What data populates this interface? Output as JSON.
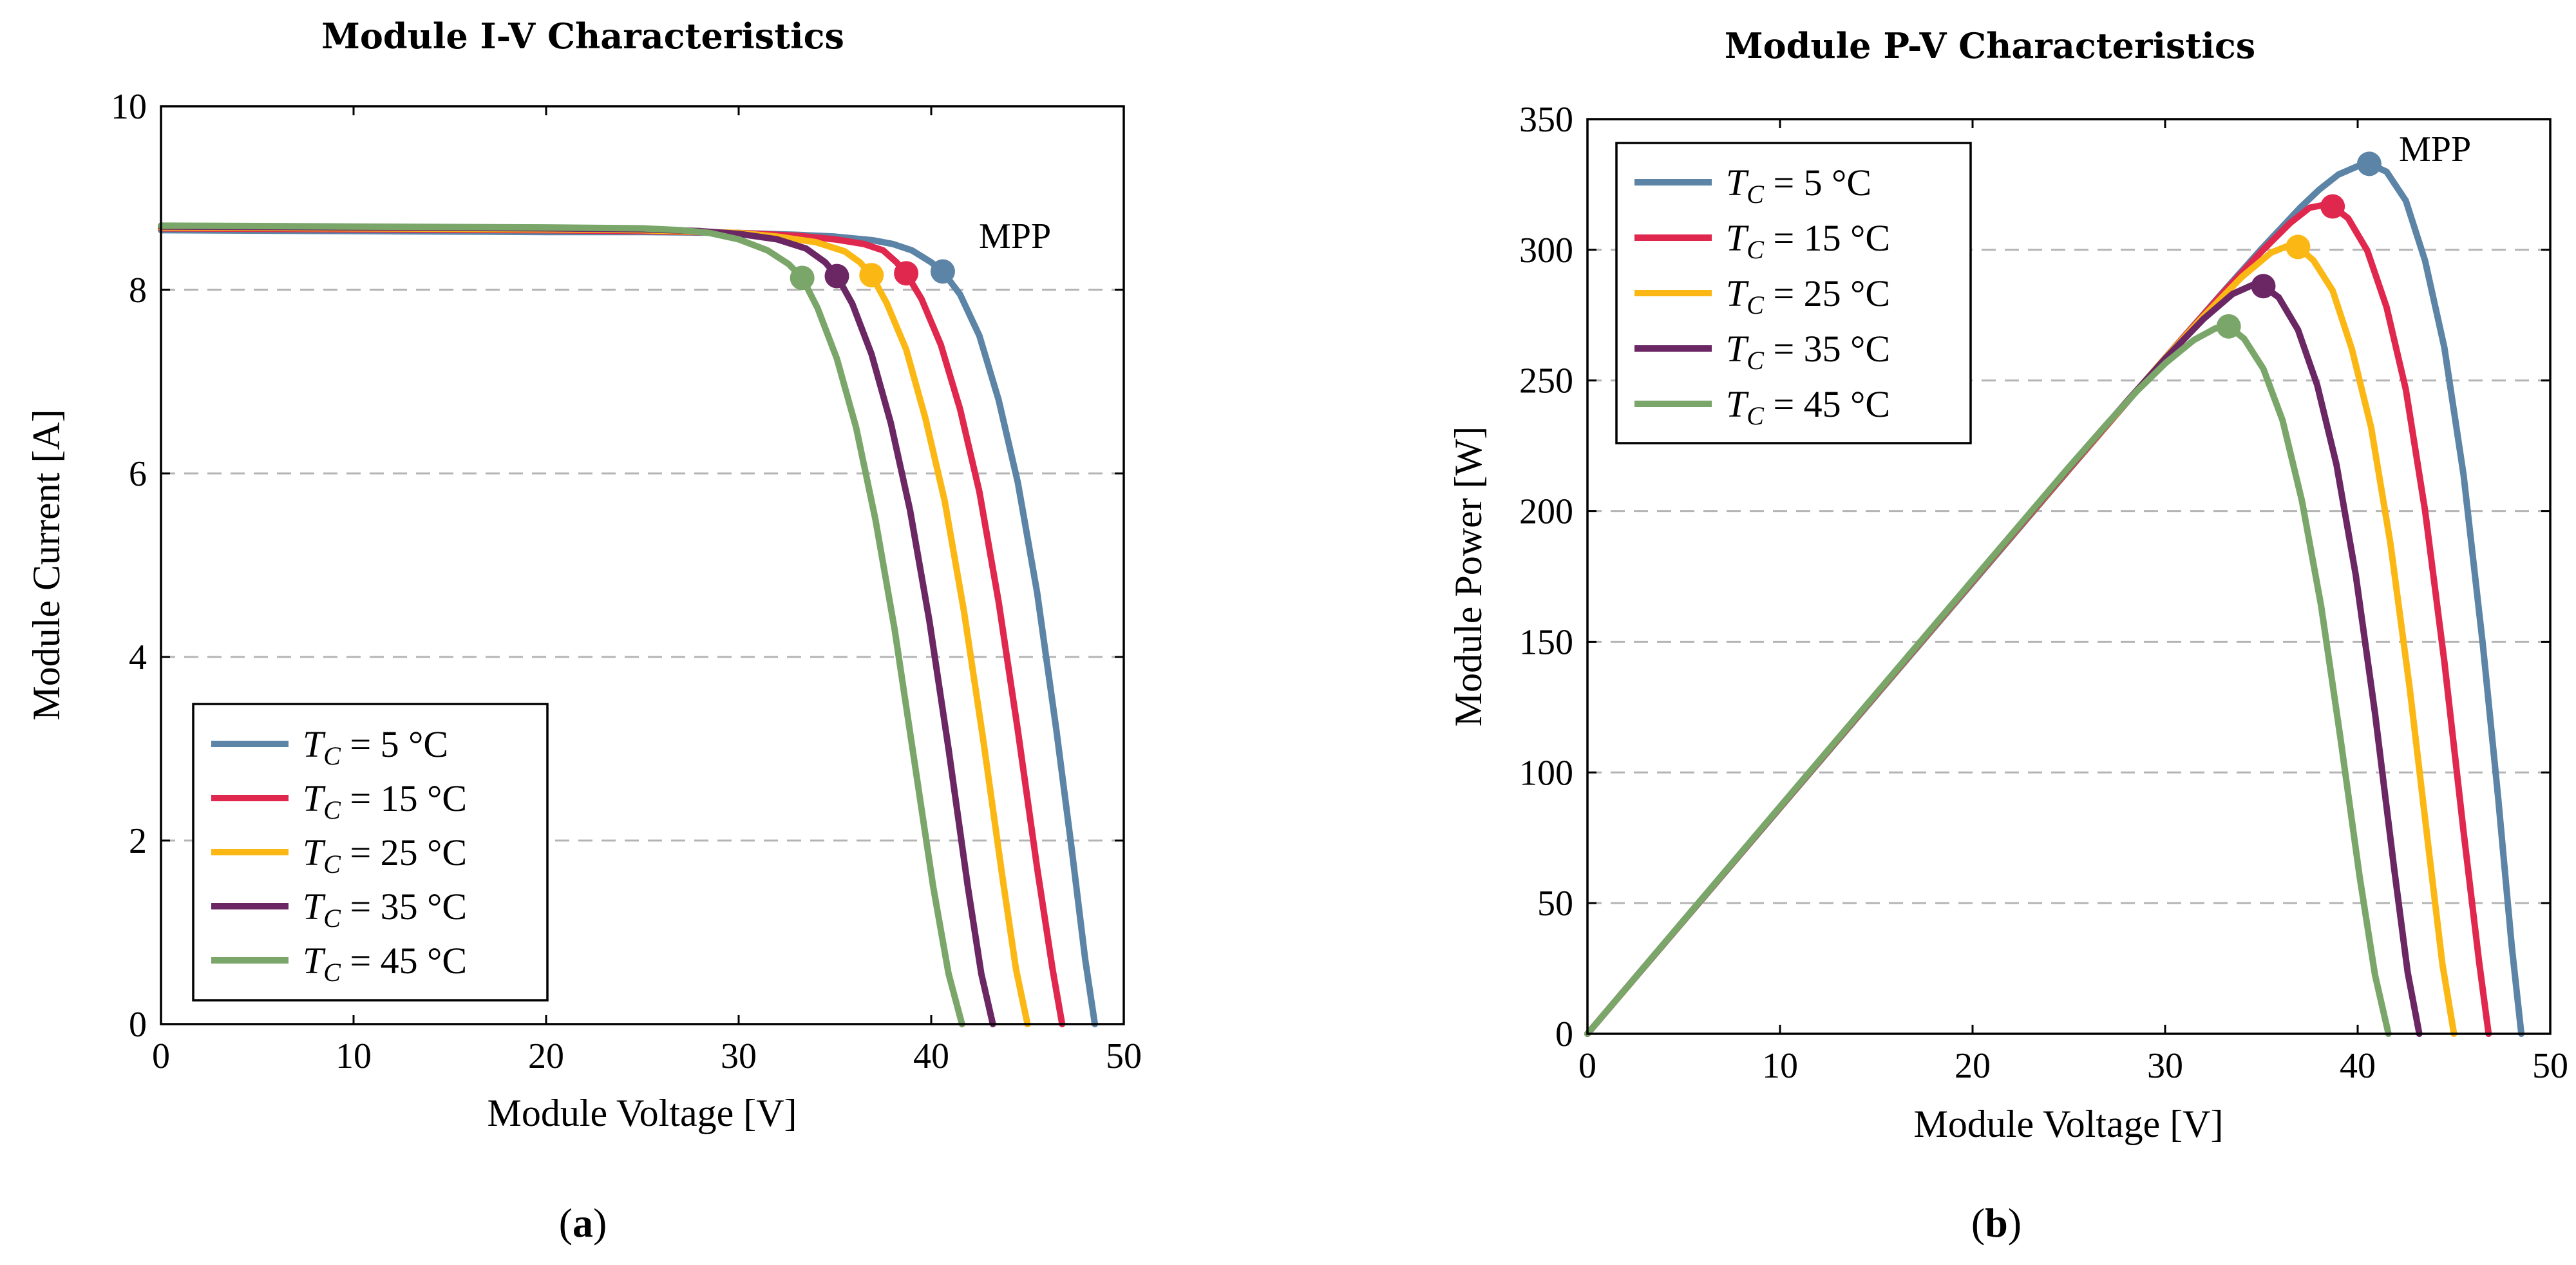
{
  "colors": {
    "tc5": "#5b84a6",
    "tc15": "#e0284e",
    "tc25": "#fbb815",
    "tc35": "#6b2764",
    "tc45": "#7aa66a",
    "grid": "#b4b4b4"
  },
  "chart_data": [
    {
      "type": "line",
      "title": "Module I-V Characteristics",
      "xlabel": "Module Voltage [V]",
      "ylabel": "Module Current [A]",
      "xlim": [
        0,
        50
      ],
      "ylim": [
        0,
        10
      ],
      "xticks": [
        0,
        10,
        20,
        30,
        40,
        50
      ],
      "yticks": [
        0,
        2,
        4,
        6,
        8,
        10
      ],
      "grid": "horizontal-dashed",
      "legend_position": "bottom-left",
      "annotation": "MPP",
      "panel_label": "a",
      "series": [
        {
          "key": "tc5",
          "name": "T_C = 5 °C",
          "legend_sub": "C",
          "legend_value": "5 °C",
          "x": [
            0,
            10,
            20,
            25,
            30,
            33,
            35,
            37,
            38,
            39,
            40,
            40.6,
            41.5,
            42.5,
            43.5,
            44.5,
            45.5,
            46.5,
            47.3,
            48,
            48.5
          ],
          "y": [
            8.65,
            8.64,
            8.63,
            8.63,
            8.62,
            8.6,
            8.58,
            8.54,
            8.5,
            8.43,
            8.3,
            8.2,
            7.95,
            7.5,
            6.8,
            5.9,
            4.7,
            3.2,
            1.9,
            0.7,
            0
          ]
        },
        {
          "key": "tc15",
          "name": "T_C = 15 °C",
          "legend_sub": "C",
          "legend_value": "15 °C",
          "x": [
            0,
            10,
            20,
            25,
            30,
            33,
            35,
            36.5,
            37.5,
            38.2,
            38.7,
            39.5,
            40.5,
            41.5,
            42.5,
            43.5,
            44.5,
            45.5,
            46.3,
            46.8
          ],
          "y": [
            8.67,
            8.66,
            8.65,
            8.64,
            8.62,
            8.59,
            8.55,
            8.5,
            8.43,
            8.3,
            8.18,
            7.9,
            7.4,
            6.7,
            5.8,
            4.6,
            3.2,
            1.7,
            0.6,
            0
          ]
        },
        {
          "key": "tc25",
          "name": "T_C = 25 °C",
          "legend_sub": "C",
          "legend_value": "25 °C",
          "x": [
            0,
            10,
            20,
            25,
            30,
            32,
            34,
            35.5,
            36.3,
            36.9,
            37.7,
            38.7,
            39.7,
            40.7,
            41.7,
            42.7,
            43.7,
            44.4,
            45
          ],
          "y": [
            8.68,
            8.67,
            8.66,
            8.65,
            8.62,
            8.58,
            8.52,
            8.42,
            8.3,
            8.16,
            7.85,
            7.35,
            6.6,
            5.7,
            4.5,
            3.1,
            1.6,
            0.6,
            0
          ]
        },
        {
          "key": "tc35",
          "name": "T_C = 35 °C",
          "legend_sub": "C",
          "legend_value": "35 °C",
          "x": [
            0,
            10,
            20,
            25,
            28,
            30,
            32,
            33.5,
            34.5,
            35.1,
            35.9,
            36.9,
            37.9,
            38.9,
            39.9,
            40.9,
            41.9,
            42.6,
            43.2
          ],
          "y": [
            8.69,
            8.68,
            8.67,
            8.66,
            8.64,
            8.61,
            8.55,
            8.45,
            8.3,
            8.15,
            7.85,
            7.3,
            6.55,
            5.6,
            4.4,
            3.0,
            1.5,
            0.55,
            0
          ]
        },
        {
          "key": "tc45",
          "name": "T_C = 45 °C",
          "legend_sub": "C",
          "legend_value": "45 °C",
          "x": [
            0,
            10,
            20,
            25,
            27,
            28.5,
            30,
            31.5,
            32.6,
            33.3,
            34.1,
            35.1,
            36.1,
            37.1,
            38.1,
            39.1,
            40.1,
            40.9,
            41.6
          ],
          "y": [
            8.7,
            8.69,
            8.68,
            8.67,
            8.65,
            8.62,
            8.55,
            8.43,
            8.28,
            8.13,
            7.8,
            7.25,
            6.5,
            5.5,
            4.3,
            2.9,
            1.5,
            0.55,
            0
          ]
        }
      ],
      "mpp_points": [
        {
          "key": "tc5",
          "x": 40.6,
          "y": 8.2
        },
        {
          "key": "tc15",
          "x": 38.7,
          "y": 8.18
        },
        {
          "key": "tc25",
          "x": 36.9,
          "y": 8.16
        },
        {
          "key": "tc35",
          "x": 35.1,
          "y": 8.15
        },
        {
          "key": "tc45",
          "x": 33.3,
          "y": 8.13
        }
      ]
    },
    {
      "type": "line",
      "title": "Module P-V Characteristics",
      "xlabel": "Module Voltage [V]",
      "ylabel": "Module Power [W]",
      "xlim": [
        0,
        50
      ],
      "ylim": [
        0,
        350
      ],
      "xticks": [
        0,
        10,
        20,
        30,
        40,
        50
      ],
      "yticks": [
        0,
        50,
        100,
        150,
        200,
        250,
        300,
        350
      ],
      "grid": "horizontal-dashed",
      "legend_position": "top-left",
      "annotation": "MPP",
      "panel_label": "b",
      "series": [
        {
          "key": "tc5",
          "name": "T_C = 5 °C",
          "legend_sub": "C",
          "legend_value": "5 °C",
          "x": [
            0,
            10,
            20,
            25,
            30,
            33,
            35,
            37,
            38,
            39,
            40,
            40.6,
            41.5,
            42.5,
            43.5,
            44.5,
            45.5,
            46.5,
            47.3,
            48,
            48.5
          ],
          "y": [
            0,
            86.4,
            172.6,
            215.8,
            258.6,
            283.8,
            300.3,
            316,
            323,
            328.8,
            332,
            332.9,
            329.9,
            318.8,
            295.8,
            262.6,
            213.9,
            148.8,
            89.9,
            33.6,
            0
          ]
        },
        {
          "key": "tc15",
          "name": "T_C = 15 °C",
          "legend_sub": "C",
          "legend_value": "15 °C",
          "x": [
            0,
            10,
            20,
            25,
            30,
            33,
            35,
            36.5,
            37.5,
            38.2,
            38.7,
            39.5,
            40.5,
            41.5,
            42.5,
            43.5,
            44.5,
            45.5,
            46.3,
            46.8
          ],
          "y": [
            0,
            86.6,
            173,
            216,
            258.6,
            283.5,
            299.3,
            310.3,
            316.1,
            317.1,
            316.6,
            312.1,
            299.7,
            278.1,
            246.5,
            200.1,
            142.4,
            77.4,
            27.8,
            0
          ]
        },
        {
          "key": "tc25",
          "name": "T_C = 25 °C",
          "legend_sub": "C",
          "legend_value": "25 °C",
          "x": [
            0,
            10,
            20,
            25,
            30,
            32,
            34,
            35.5,
            36.3,
            36.9,
            37.7,
            38.7,
            39.7,
            40.7,
            41.7,
            42.7,
            43.7,
            44.4,
            45
          ],
          "y": [
            0,
            86.7,
            173.2,
            216.3,
            258.6,
            274.6,
            289.7,
            298.9,
            301.3,
            301.1,
            296,
            284.4,
            262,
            232,
            187.7,
            132.4,
            69.9,
            26.6,
            0
          ]
        },
        {
          "key": "tc35",
          "name": "T_C = 35 °C",
          "legend_sub": "C",
          "legend_value": "35 °C",
          "x": [
            0,
            10,
            20,
            25,
            28,
            30,
            32,
            33.5,
            34.5,
            35.1,
            35.9,
            36.9,
            37.9,
            38.9,
            39.9,
            40.9,
            41.9,
            42.6,
            43.2
          ],
          "y": [
            0,
            86.8,
            173.4,
            216.5,
            241.9,
            258.3,
            273.6,
            283.1,
            286.4,
            286.1,
            281.8,
            269.4,
            248.2,
            217.8,
            175.6,
            122.7,
            62.9,
            23.4,
            0
          ]
        },
        {
          "key": "tc45",
          "name": "T_C = 45 °C",
          "legend_sub": "C",
          "legend_value": "45 °C",
          "x": [
            0,
            10,
            20,
            25,
            27,
            28.5,
            30,
            31.5,
            32.6,
            33.3,
            34.1,
            35.1,
            36.1,
            37.1,
            38.1,
            39.1,
            40.1,
            40.9,
            41.6
          ],
          "y": [
            0,
            86.9,
            173.6,
            216.8,
            233.6,
            245.7,
            256.5,
            265.5,
            269.9,
            270.7,
            266,
            254.5,
            234.7,
            204.1,
            163.8,
            113.4,
            60.2,
            22.5,
            0
          ]
        }
      ],
      "mpp_points": [
        {
          "key": "tc5",
          "x": 40.6,
          "y": 332.9
        },
        {
          "key": "tc15",
          "x": 38.7,
          "y": 316.6
        },
        {
          "key": "tc25",
          "x": 36.9,
          "y": 301.1
        },
        {
          "key": "tc35",
          "x": 35.1,
          "y": 286.1
        },
        {
          "key": "tc45",
          "x": 33.3,
          "y": 270.7
        }
      ]
    }
  ]
}
